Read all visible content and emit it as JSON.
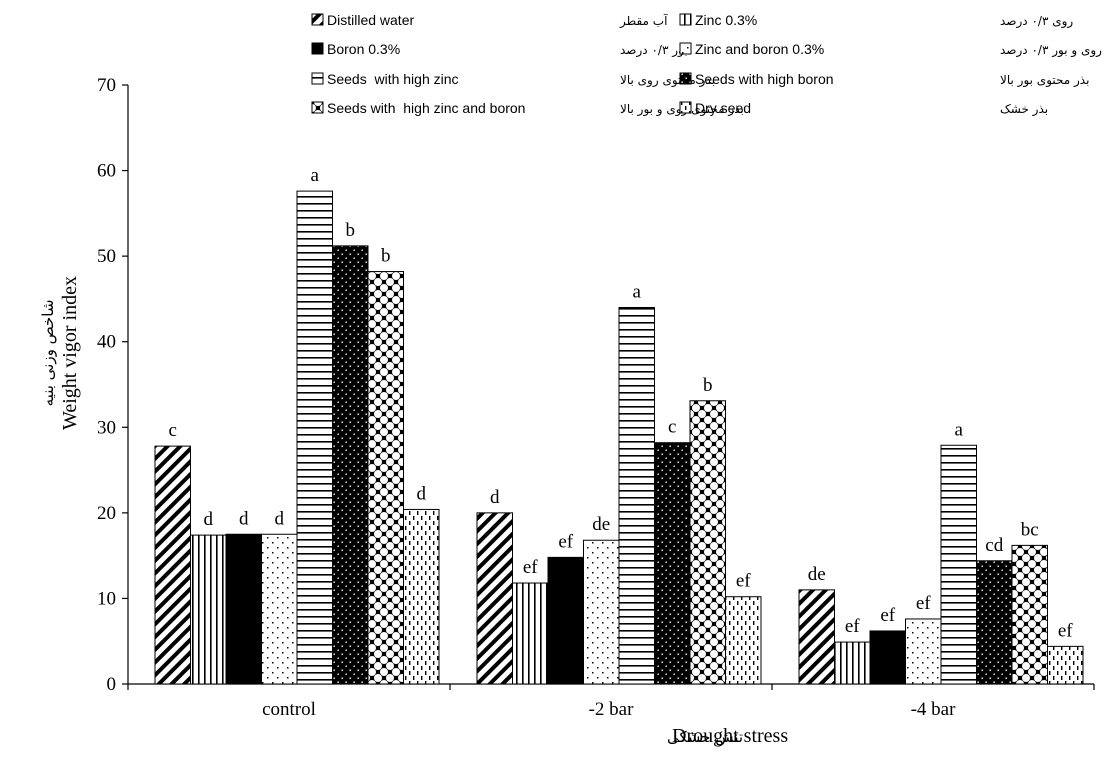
{
  "chart_data": {
    "type": "bar",
    "title": "",
    "xlabel_fa": "تنش خشکی",
    "xlabel_en": "Drought stress",
    "ylabel_fa": "شاخص وزنی بنیه",
    "ylabel_en": "Weight vigor index",
    "ylim": [
      0,
      70
    ],
    "yticks": [
      0,
      10,
      20,
      30,
      40,
      50,
      60,
      70
    ],
    "grid": false,
    "legend_position": "top",
    "categories": [
      "control",
      "-2 bar",
      "-4 bar"
    ],
    "series": [
      {
        "name": "Distilled water",
        "name_fa": "آب مقطر",
        "pattern": "diag",
        "values": [
          27.8,
          20.0,
          11.0
        ],
        "letters": [
          "c",
          "d",
          "de"
        ]
      },
      {
        "name": "Zinc 0.3%",
        "name_fa": "روی ۰/۳ درصد",
        "pattern": "vert",
        "values": [
          17.4,
          11.8,
          4.9
        ],
        "letters": [
          "d",
          "ef",
          "ef"
        ]
      },
      {
        "name": "Boron 0.3%",
        "name_fa": "بور ۰/۳ درصد",
        "pattern": "solid",
        "values": [
          17.5,
          14.8,
          6.2
        ],
        "letters": [
          "d",
          "ef",
          "ef"
        ]
      },
      {
        "name": "Zinc and boron 0.3%",
        "name_fa": "روی و بور ۰/۳ درصد",
        "pattern": "sparse-dots",
        "values": [
          17.5,
          16.8,
          7.6
        ],
        "letters": [
          "d",
          "de",
          "ef"
        ]
      },
      {
        "name": "Seeds  with high zinc",
        "name_fa": "بذر محتوی روی بالا",
        "pattern": "horiz",
        "values": [
          57.6,
          44.0,
          27.9
        ],
        "letters": [
          "a",
          "a",
          "a"
        ]
      },
      {
        "name": "Seeds with high boron",
        "name_fa": "بذر محتوی بور بالا",
        "pattern": "dark-dots",
        "values": [
          51.2,
          28.2,
          14.4
        ],
        "letters": [
          "b",
          "c",
          "cd"
        ]
      },
      {
        "name": "Seeds with  high zinc and boron",
        "name_fa": "بذر محتوی روی و بور بالا",
        "pattern": "checker",
        "values": [
          48.2,
          33.1,
          16.2
        ],
        "letters": [
          "b",
          "b",
          "bc"
        ]
      },
      {
        "name": "Dry seed",
        "name_fa": "بذر خشک",
        "pattern": "dashes",
        "values": [
          20.4,
          10.2,
          4.4
        ],
        "letters": [
          "d",
          "ef",
          "ef"
        ]
      }
    ]
  }
}
